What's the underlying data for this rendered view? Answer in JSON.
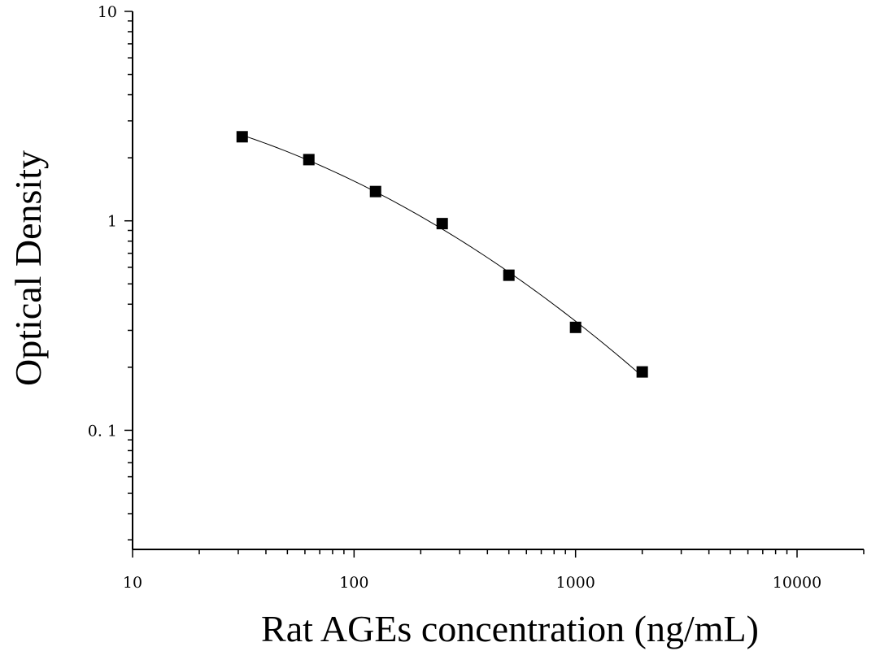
{
  "chart_data": {
    "type": "scatter",
    "xlabel": "Rat AGEs concentration (ng/mL)",
    "ylabel": "Optical Density",
    "xscale": "log",
    "yscale": "log",
    "xlim": [
      10,
      20000
    ],
    "ylim": [
      0.027,
      10
    ],
    "xticks": [
      10,
      100,
      1000,
      10000
    ],
    "xtick_labels": [
      "10",
      "100",
      "1000",
      "10000"
    ],
    "yticks": [
      0.1,
      1,
      10
    ],
    "ytick_labels": [
      "0. 1",
      "1",
      "10"
    ],
    "grid": false,
    "marker": "square",
    "fit_line": true,
    "marker_color": "#000000",
    "line_color": "#000000",
    "series": [
      {
        "x": [
          31.25,
          62.5,
          125,
          250,
          500,
          1000,
          2000
        ],
        "y": [
          2.52,
          1.96,
          1.38,
          0.97,
          0.55,
          0.31,
          0.19
        ]
      }
    ]
  }
}
